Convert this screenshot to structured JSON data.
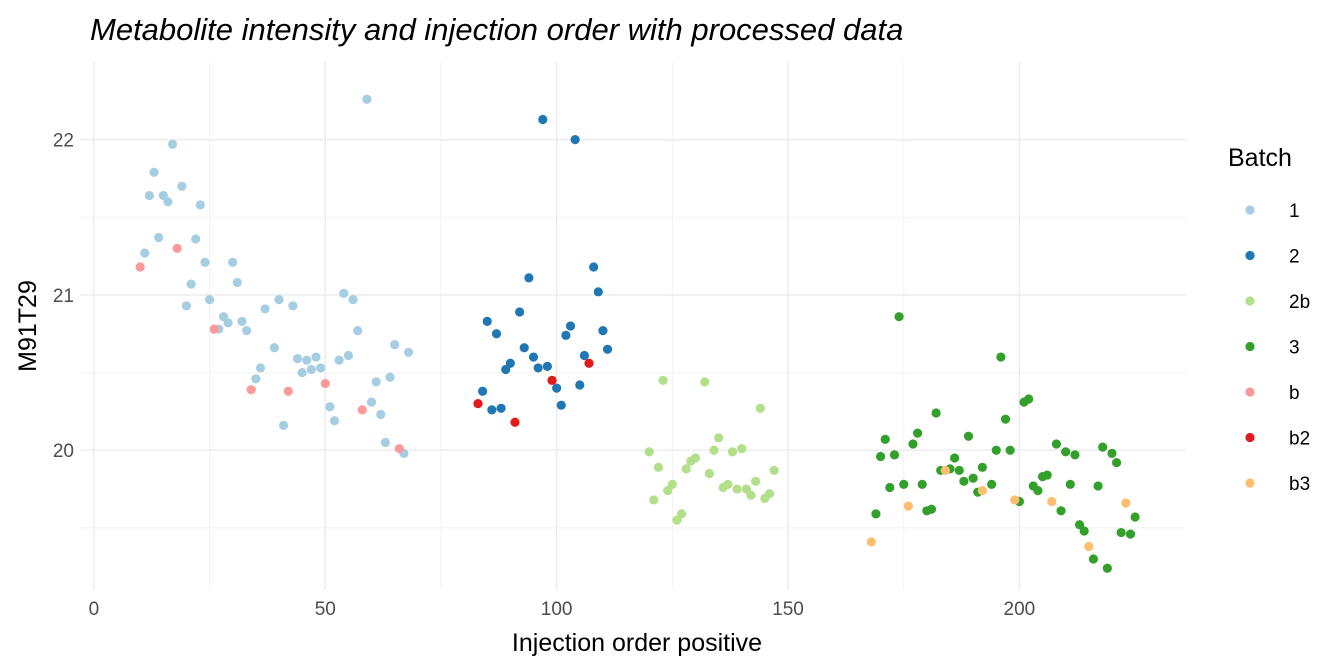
{
  "chart_data": {
    "type": "scatter",
    "title": "Metabolite intensity and injection order with processed data",
    "xlabel": "Injection order positive",
    "ylabel": "M91T29",
    "xlim": [
      -3,
      236
    ],
    "ylim": [
      19.1,
      22.5
    ],
    "x_ticks": [
      0,
      50,
      100,
      150,
      200
    ],
    "y_ticks": [
      20,
      21,
      22
    ],
    "grid": true,
    "legend": {
      "title": "Batch",
      "position": "right",
      "entries": [
        {
          "name": "1",
          "color": "#a6cee3"
        },
        {
          "name": "2",
          "color": "#1f78b4"
        },
        {
          "name": "2b",
          "color": "#b2df8a"
        },
        {
          "name": "3",
          "color": "#33a02c"
        },
        {
          "name": "b",
          "color": "#fb9a99"
        },
        {
          "name": "b2",
          "color": "#e31a1c"
        },
        {
          "name": "b3",
          "color": "#fdbf6f"
        }
      ]
    },
    "series": [
      {
        "name": "1",
        "color": "#a6cee3",
        "points": [
          [
            11,
            21.27
          ],
          [
            12,
            21.64
          ],
          [
            13,
            21.79
          ],
          [
            14,
            21.37
          ],
          [
            15,
            21.64
          ],
          [
            16,
            21.6
          ],
          [
            17,
            21.97
          ],
          [
            19,
            21.7
          ],
          [
            20,
            20.93
          ],
          [
            21,
            21.07
          ],
          [
            22,
            21.36
          ],
          [
            23,
            21.58
          ],
          [
            24,
            21.21
          ],
          [
            25,
            20.97
          ],
          [
            27,
            20.78
          ],
          [
            28,
            20.86
          ],
          [
            29,
            20.82
          ],
          [
            30,
            21.21
          ],
          [
            31,
            21.08
          ],
          [
            32,
            20.83
          ],
          [
            33,
            20.77
          ],
          [
            35,
            20.46
          ],
          [
            36,
            20.53
          ],
          [
            37,
            20.91
          ],
          [
            39,
            20.66
          ],
          [
            40,
            20.97
          ],
          [
            41,
            20.16
          ],
          [
            43,
            20.93
          ],
          [
            44,
            20.59
          ],
          [
            45,
            20.5
          ],
          [
            46,
            20.58
          ],
          [
            47,
            20.52
          ],
          [
            48,
            20.6
          ],
          [
            49,
            20.53
          ],
          [
            51,
            20.28
          ],
          [
            52,
            20.19
          ],
          [
            53,
            20.58
          ],
          [
            54,
            21.01
          ],
          [
            55,
            20.61
          ],
          [
            56,
            20.97
          ],
          [
            57,
            20.77
          ],
          [
            59,
            22.26
          ],
          [
            60,
            20.31
          ],
          [
            61,
            20.44
          ],
          [
            62,
            20.23
          ],
          [
            63,
            20.05
          ],
          [
            64,
            20.47
          ],
          [
            65,
            20.68
          ],
          [
            67,
            19.98
          ],
          [
            68,
            20.63
          ]
        ]
      },
      {
        "name": "2",
        "color": "#1f78b4",
        "points": [
          [
            84,
            20.38
          ],
          [
            85,
            20.83
          ],
          [
            86,
            20.26
          ],
          [
            87,
            20.75
          ],
          [
            88,
            20.27
          ],
          [
            89,
            20.52
          ],
          [
            90,
            20.56
          ],
          [
            92,
            20.89
          ],
          [
            93,
            20.66
          ],
          [
            94,
            21.11
          ],
          [
            95,
            20.6
          ],
          [
            96,
            20.53
          ],
          [
            97,
            22.13
          ],
          [
            98,
            20.54
          ],
          [
            100,
            20.4
          ],
          [
            101,
            20.29
          ],
          [
            102,
            20.74
          ],
          [
            103,
            20.8
          ],
          [
            104,
            22.0
          ],
          [
            105,
            20.42
          ],
          [
            106,
            20.61
          ],
          [
            108,
            21.18
          ],
          [
            109,
            21.02
          ],
          [
            110,
            20.77
          ],
          [
            111,
            20.65
          ]
        ]
      },
      {
        "name": "2b",
        "color": "#b2df8a",
        "points": [
          [
            120,
            19.99
          ],
          [
            121,
            19.68
          ],
          [
            122,
            19.89
          ],
          [
            123,
            20.45
          ],
          [
            124,
            19.74
          ],
          [
            125,
            19.78
          ],
          [
            126,
            19.55
          ],
          [
            127,
            19.59
          ],
          [
            128,
            19.88
          ],
          [
            129,
            19.93
          ],
          [
            130,
            19.95
          ],
          [
            132,
            20.44
          ],
          [
            133,
            19.85
          ],
          [
            134,
            20.0
          ],
          [
            135,
            20.08
          ],
          [
            136,
            19.76
          ],
          [
            137,
            19.78
          ],
          [
            138,
            19.99
          ],
          [
            139,
            19.75
          ],
          [
            140,
            20.01
          ],
          [
            141,
            19.75
          ],
          [
            142,
            19.71
          ],
          [
            143,
            19.8
          ],
          [
            144,
            20.27
          ],
          [
            145,
            19.69
          ],
          [
            146,
            19.72
          ],
          [
            147,
            19.87
          ]
        ]
      },
      {
        "name": "3",
        "color": "#33a02c",
        "points": [
          [
            169,
            19.59
          ],
          [
            170,
            19.96
          ],
          [
            171,
            20.07
          ],
          [
            172,
            19.76
          ],
          [
            173,
            19.97
          ],
          [
            174,
            20.86
          ],
          [
            175,
            19.78
          ],
          [
            177,
            20.04
          ],
          [
            178,
            20.11
          ],
          [
            179,
            19.78
          ],
          [
            180,
            19.61
          ],
          [
            181,
            19.62
          ],
          [
            182,
            20.24
          ],
          [
            183,
            19.87
          ],
          [
            185,
            19.88
          ],
          [
            186,
            19.95
          ],
          [
            187,
            19.87
          ],
          [
            188,
            19.8
          ],
          [
            189,
            20.09
          ],
          [
            190,
            19.82
          ],
          [
            191,
            19.73
          ],
          [
            192,
            19.89
          ],
          [
            194,
            19.78
          ],
          [
            195,
            20.0
          ],
          [
            196,
            20.6
          ],
          [
            197,
            20.2
          ],
          [
            198,
            20.0
          ],
          [
            200,
            19.67
          ],
          [
            201,
            20.31
          ],
          [
            202,
            20.33
          ],
          [
            203,
            19.77
          ],
          [
            204,
            19.74
          ],
          [
            205,
            19.83
          ],
          [
            206,
            19.84
          ],
          [
            208,
            20.04
          ],
          [
            209,
            19.61
          ],
          [
            210,
            19.99
          ],
          [
            211,
            19.78
          ],
          [
            212,
            19.97
          ],
          [
            213,
            19.52
          ],
          [
            214,
            19.48
          ],
          [
            216,
            19.3
          ],
          [
            217,
            19.77
          ],
          [
            218,
            20.02
          ],
          [
            219,
            19.24
          ],
          [
            220,
            19.98
          ],
          [
            221,
            19.92
          ],
          [
            222,
            19.47
          ],
          [
            224,
            19.46
          ],
          [
            225,
            19.57
          ]
        ]
      },
      {
        "name": "b",
        "color": "#fb9a99",
        "points": [
          [
            10,
            21.18
          ],
          [
            18,
            21.3
          ],
          [
            26,
            20.78
          ],
          [
            34,
            20.39
          ],
          [
            42,
            20.38
          ],
          [
            50,
            20.43
          ],
          [
            58,
            20.26
          ],
          [
            66,
            20.01
          ]
        ]
      },
      {
        "name": "b2",
        "color": "#e31a1c",
        "points": [
          [
            83,
            20.3
          ],
          [
            91,
            20.18
          ],
          [
            99,
            20.45
          ],
          [
            107,
            20.56
          ]
        ]
      },
      {
        "name": "b3",
        "color": "#fdbf6f",
        "points": [
          [
            168,
            19.41
          ],
          [
            176,
            19.64
          ],
          [
            184,
            19.87
          ],
          [
            192,
            19.74
          ],
          [
            199,
            19.68
          ],
          [
            207,
            19.67
          ],
          [
            215,
            19.38
          ],
          [
            223,
            19.66
          ]
        ]
      }
    ]
  }
}
